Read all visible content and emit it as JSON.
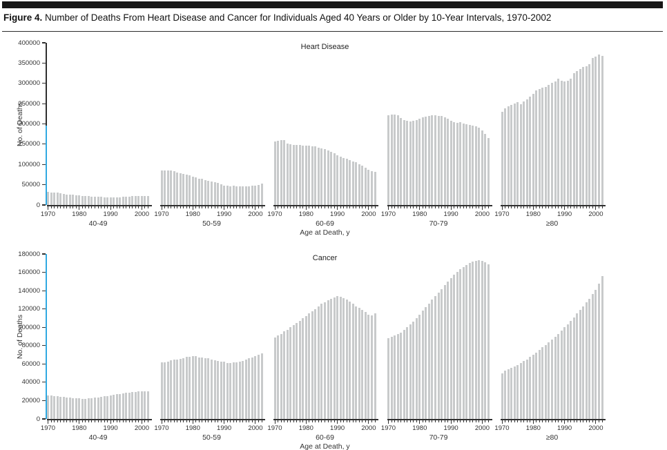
{
  "header": {
    "figure_label": "Figure 4.",
    "figure_caption": " Number of Deaths From Heart Disease and Cancer for Individuals Aged 40 Years or Older by 10-Year Intervals, 1970-2002"
  },
  "colors": {
    "top_bar": "#171717",
    "bar": "#c8cacb",
    "axis": "#2e2e2e",
    "text": "#333333",
    "axis_highlight": "#2fa9e1"
  },
  "chart_data": [
    {
      "type": "bar",
      "title": "Heart Disease",
      "ylabel": "No. of Deaths",
      "xlabel": "Age at Death, y",
      "ylim": [
        0,
        400000
      ],
      "ytick_step": 50000,
      "ytick_labels": [
        "400000",
        "350000",
        "300000",
        "250000",
        "200000",
        "150000",
        "100000",
        "50000",
        "0"
      ],
      "xtick_labels": [
        "1970",
        "1980",
        "1990",
        "2000"
      ],
      "grid": false,
      "legend": "none",
      "y_axis_highlight_fraction": 0.49,
      "years": [
        1970,
        1971,
        1972,
        1973,
        1974,
        1975,
        1976,
        1977,
        1978,
        1979,
        1980,
        1981,
        1982,
        1983,
        1984,
        1985,
        1986,
        1987,
        1988,
        1989,
        1990,
        1991,
        1992,
        1993,
        1994,
        1995,
        1996,
        1997,
        1998,
        1999,
        2000,
        2001,
        2002
      ],
      "panels": [
        {
          "label": "40-49",
          "values": [
            32000,
            31500,
            31000,
            30000,
            28500,
            27000,
            26000,
            25500,
            25000,
            24000,
            23500,
            22500,
            22000,
            21500,
            21000,
            20500,
            20000,
            19700,
            19500,
            19300,
            19200,
            19000,
            19200,
            19600,
            20000,
            20500,
            21000,
            21500,
            22000,
            22400,
            22700,
            22900,
            23000
          ]
        },
        {
          "label": "50-59",
          "values": [
            85000,
            85500,
            86000,
            86000,
            84000,
            80000,
            78000,
            76000,
            74500,
            72500,
            70000,
            67500,
            65500,
            64000,
            62000,
            60000,
            58000,
            56000,
            54000,
            51000,
            48500,
            47000,
            46500,
            47000,
            46500,
            46300,
            46300,
            46500,
            46800,
            47000,
            48000,
            50000,
            52000
          ]
        },
        {
          "label": "60-69",
          "values": [
            157000,
            159000,
            160500,
            160000,
            152000,
            149500,
            148500,
            148000,
            147500,
            147000,
            146500,
            146000,
            145000,
            144000,
            142000,
            140000,
            137500,
            134500,
            131000,
            127000,
            122500,
            118500,
            115500,
            113500,
            111000,
            108000,
            105000,
            101000,
            96500,
            92000,
            87000,
            83000,
            81000
          ]
        },
        {
          "label": "70-79",
          "values": [
            222000,
            223000,
            222500,
            221000,
            215000,
            210000,
            207500,
            206500,
            207500,
            210000,
            213000,
            215500,
            217500,
            220000,
            222000,
            221500,
            220500,
            219000,
            217000,
            212000,
            207500,
            204500,
            202500,
            204000,
            201500,
            200000,
            198000,
            196000,
            194000,
            190000,
            184000,
            176000,
            166000
          ]
        },
        {
          "label": "≥80",
          "values": [
            230000,
            238000,
            243000,
            247000,
            250000,
            253000,
            248000,
            255000,
            261000,
            267000,
            274000,
            282000,
            286000,
            290000,
            292000,
            297000,
            301000,
            305000,
            312000,
            306000,
            304000,
            307000,
            311000,
            325000,
            330000,
            336000,
            340000,
            343000,
            348000,
            362000,
            366000,
            371000,
            368000
          ]
        }
      ]
    },
    {
      "type": "bar",
      "title": "Cancer",
      "ylabel": "No. of Deaths",
      "xlabel": "Age at Death, y",
      "ylim": [
        0,
        180000
      ],
      "ytick_step": 20000,
      "ytick_labels": [
        "180000",
        "160000",
        "140000",
        "120000",
        "100000",
        "80000",
        "60000",
        "40000",
        "20000",
        "0"
      ],
      "xtick_labels": [
        "1970",
        "1980",
        "1990",
        "2000"
      ],
      "grid": false,
      "legend": "none",
      "y_axis_highlight_fraction": 1.0,
      "years": [
        1970,
        1971,
        1972,
        1973,
        1974,
        1975,
        1976,
        1977,
        1978,
        1979,
        1980,
        1981,
        1982,
        1983,
        1984,
        1985,
        1986,
        1987,
        1988,
        1989,
        1990,
        1991,
        1992,
        1993,
        1994,
        1995,
        1996,
        1997,
        1998,
        1999,
        2000,
        2001,
        2002
      ],
      "panels": [
        {
          "label": "40-49",
          "values": [
            26000,
            25600,
            25200,
            25000,
            24500,
            24000,
            23500,
            23200,
            23000,
            22700,
            22400,
            21800,
            22000,
            22400,
            22800,
            23200,
            23700,
            24200,
            24700,
            25200,
            25800,
            26300,
            26800,
            27300,
            27800,
            28300,
            28800,
            29300,
            29600,
            29900,
            30300,
            30100,
            30000
          ]
        },
        {
          "label": "50-59",
          "values": [
            61500,
            62000,
            62500,
            63800,
            64500,
            65000,
            65600,
            66500,
            67500,
            68000,
            68500,
            68200,
            67200,
            66700,
            66500,
            66000,
            64800,
            63800,
            63200,
            62700,
            62200,
            61200,
            61000,
            61500,
            62000,
            62500,
            63200,
            64500,
            66000,
            67200,
            68500,
            69800,
            71500
          ]
        },
        {
          "label": "60-69",
          "values": [
            89000,
            91000,
            93000,
            95500,
            97500,
            100000,
            102500,
            104500,
            107000,
            110000,
            112500,
            115000,
            117500,
            120000,
            123000,
            125500,
            127500,
            129500,
            131000,
            132500,
            134000,
            133000,
            132000,
            130000,
            128000,
            125500,
            123000,
            121000,
            119000,
            117000,
            114000,
            113000,
            115000
          ]
        },
        {
          "label": "70-79",
          "values": [
            88000,
            90000,
            91500,
            93000,
            94500,
            97000,
            100000,
            103000,
            106000,
            110000,
            114000,
            118000,
            122000,
            126000,
            130000,
            134000,
            138000,
            142000,
            146000,
            150000,
            154000,
            157500,
            160500,
            163500,
            166000,
            168000,
            170000,
            171500,
            172500,
            173500,
            172500,
            171000,
            169000
          ]
        },
        {
          "label": "≥80",
          "values": [
            50000,
            52500,
            54000,
            55500,
            57000,
            59000,
            61000,
            63000,
            65000,
            67500,
            70000,
            72500,
            75000,
            78000,
            81000,
            84000,
            87000,
            90000,
            93000,
            96500,
            100000,
            103500,
            107000,
            111000,
            115000,
            119000,
            123000,
            127000,
            131000,
            136000,
            141000,
            148000,
            156000
          ]
        }
      ]
    }
  ]
}
